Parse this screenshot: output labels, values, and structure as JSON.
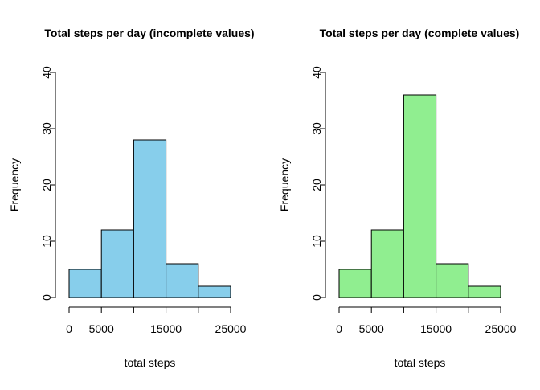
{
  "chart_data": [
    {
      "type": "histogram",
      "title": "Total steps per day (incomplete values)",
      "xlabel": "total steps",
      "ylabel": "Frequency",
      "bins": [
        [
          0,
          5000
        ],
        [
          5000,
          10000
        ],
        [
          10000,
          15000
        ],
        [
          15000,
          20000
        ],
        [
          20000,
          25000
        ]
      ],
      "values": [
        5,
        12,
        28,
        6,
        2
      ],
      "bar_color": "#87CEEB",
      "xlim": [
        0,
        25000
      ],
      "ylim": [
        0,
        40
      ],
      "x_ticks": [
        0,
        5000,
        10000,
        15000,
        20000,
        25000
      ],
      "x_tick_labels": [
        "0",
        "5000",
        "",
        "15000",
        "",
        "25000"
      ],
      "y_ticks": [
        0,
        10,
        20,
        30,
        40
      ],
      "y_tick_labels": [
        "0",
        "10",
        "20",
        "30",
        "40"
      ],
      "grid": false
    },
    {
      "type": "histogram",
      "title": "Total steps per day (complete values)",
      "xlabel": "total steps",
      "ylabel": "Frequency",
      "bins": [
        [
          0,
          5000
        ],
        [
          5000,
          10000
        ],
        [
          10000,
          15000
        ],
        [
          15000,
          20000
        ],
        [
          20000,
          25000
        ]
      ],
      "values": [
        5,
        12,
        36,
        6,
        2
      ],
      "bar_color": "#90EE90",
      "xlim": [
        0,
        25000
      ],
      "ylim": [
        0,
        40
      ],
      "x_ticks": [
        0,
        5000,
        10000,
        15000,
        20000,
        25000
      ],
      "x_tick_labels": [
        "0",
        "5000",
        "",
        "15000",
        "",
        "25000"
      ],
      "y_ticks": [
        0,
        10,
        20,
        30,
        40
      ],
      "y_tick_labels": [
        "0",
        "10",
        "20",
        "30",
        "40"
      ],
      "grid": false
    }
  ]
}
